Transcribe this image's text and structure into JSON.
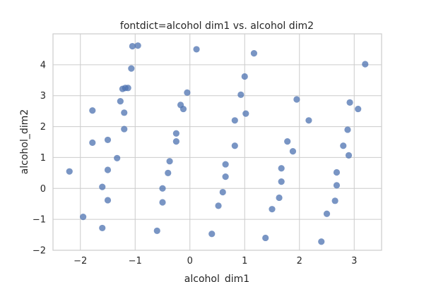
{
  "chart_data": {
    "type": "scatter",
    "title": "fontdict=alcohol dim1 vs. alcohol dim2",
    "xlabel": "alcohol_dim1",
    "ylabel": "alcohol_dim2",
    "xlim": [
      -2.5,
      3.5
    ],
    "ylim": [
      -2.0,
      5.0
    ],
    "xticks": [
      -2,
      -1,
      0,
      1,
      2,
      3
    ],
    "yticks": [
      -2,
      -1,
      0,
      1,
      2,
      3,
      4
    ],
    "xtick_labels": [
      "−2",
      "−1",
      "0",
      "1",
      "2",
      "3"
    ],
    "ytick_labels": [
      "−2",
      "−1",
      "0",
      "1",
      "2",
      "3",
      "4"
    ],
    "grid": true,
    "point_color": "#4c72b0",
    "series": [
      {
        "x": [
          -2.2,
          -1.95,
          -1.78,
          -1.78,
          -1.6,
          -1.6,
          -1.5,
          -1.5,
          -1.5,
          -1.33,
          -1.27,
          -1.23,
          -1.2,
          -1.2,
          -1.18,
          -1.13,
          -1.07,
          -1.05,
          -0.95,
          -0.6,
          -0.5,
          -0.5,
          -0.4,
          -0.37,
          -0.25,
          -0.25,
          -0.17,
          -0.12,
          -0.05,
          0.12,
          0.4,
          0.52,
          0.6,
          0.65,
          0.65,
          0.82,
          0.82,
          0.93,
          1.0,
          1.02,
          1.17,
          1.38,
          1.5,
          1.63,
          1.67,
          1.67,
          1.78,
          1.88,
          1.95,
          2.17,
          2.4,
          2.5,
          2.65,
          2.68,
          2.68,
          2.8,
          2.88,
          2.9,
          2.92,
          3.07,
          3.2
        ],
        "y": [
          0.55,
          -0.92,
          2.52,
          1.48,
          0.05,
          -1.28,
          1.57,
          0.6,
          -0.38,
          0.98,
          2.82,
          3.22,
          2.45,
          1.92,
          3.25,
          3.25,
          3.88,
          4.6,
          4.62,
          -1.37,
          -0.45,
          0.0,
          0.5,
          0.88,
          1.52,
          1.78,
          2.7,
          2.57,
          3.1,
          4.5,
          -1.47,
          -0.56,
          -0.12,
          0.38,
          0.78,
          1.38,
          2.2,
          3.03,
          3.62,
          2.42,
          4.37,
          -1.6,
          -0.67,
          -0.3,
          0.22,
          0.65,
          1.52,
          1.2,
          2.88,
          2.2,
          -1.72,
          -0.82,
          -0.4,
          0.1,
          0.52,
          1.38,
          1.9,
          1.07,
          2.78,
          2.57,
          4.02
        ]
      }
    ]
  }
}
